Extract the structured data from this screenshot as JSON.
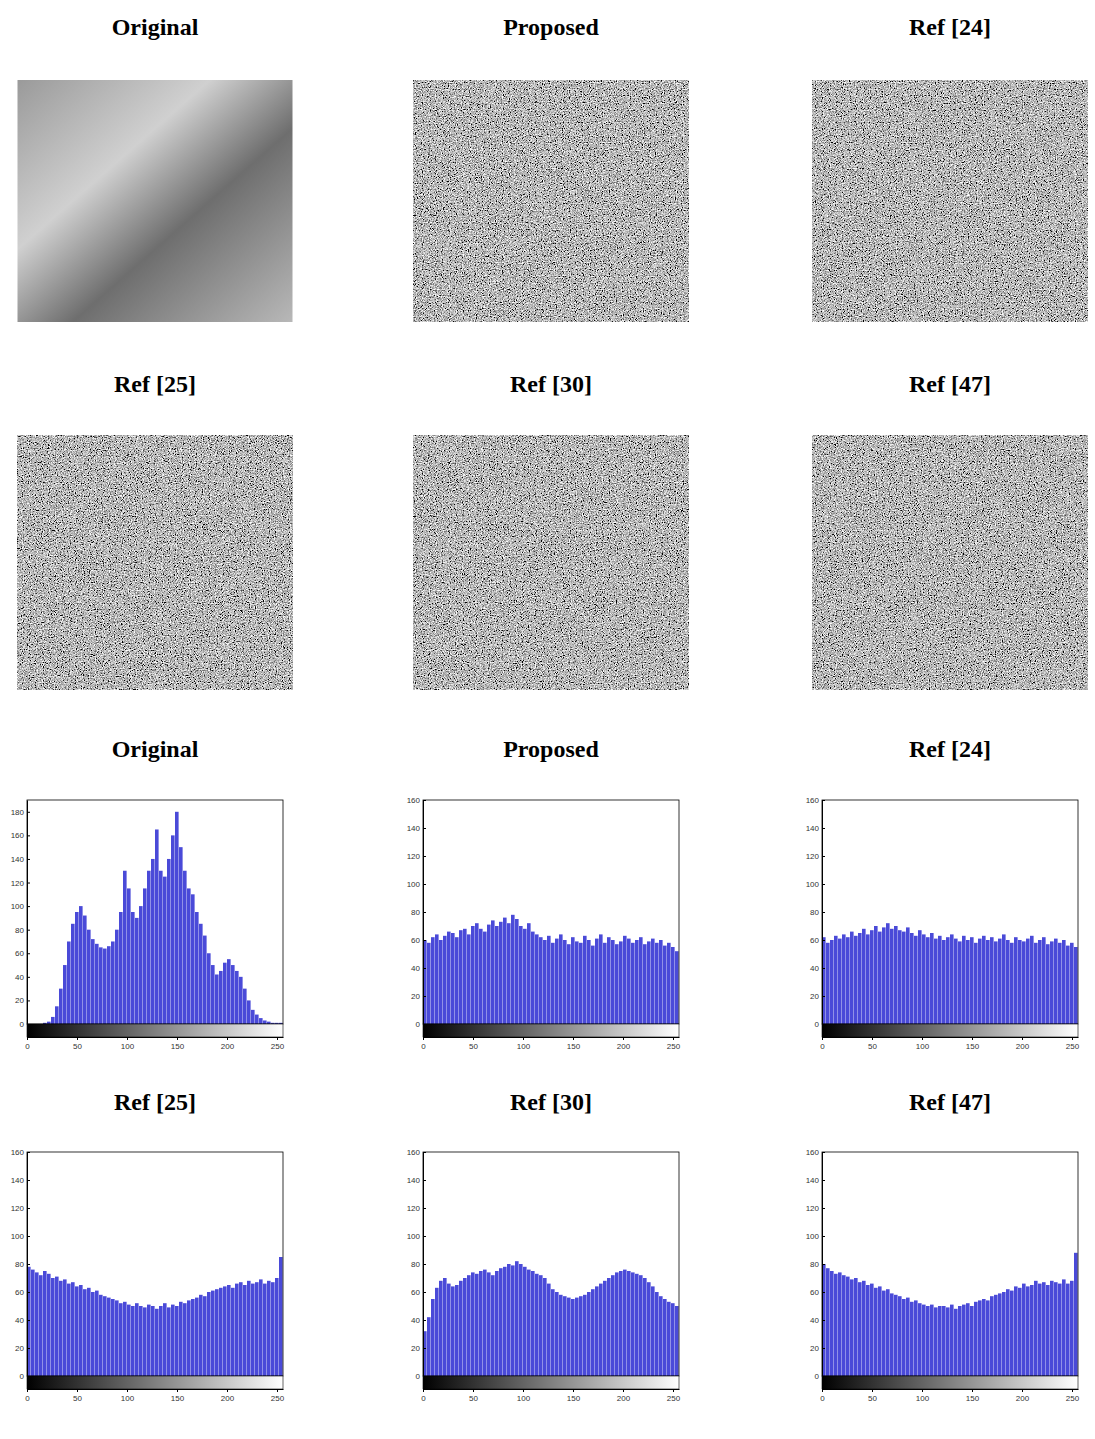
{
  "images": {
    "titles": [
      "Original",
      "Proposed",
      "Ref [24]",
      "Ref [25]",
      "Ref [30]",
      "Ref [47]"
    ]
  },
  "chart_data": [
    {
      "type": "histogram",
      "title": "Original",
      "color": "#4a4ad8",
      "bins": [
        0,
        4,
        8,
        12,
        16,
        20,
        24,
        28,
        32,
        36,
        40,
        44,
        48,
        52,
        56,
        60,
        64,
        68,
        72,
        76,
        80,
        84,
        88,
        92,
        96,
        100,
        104,
        108,
        112,
        116,
        120,
        124,
        128,
        132,
        136,
        140,
        144,
        148,
        152,
        156,
        160,
        164,
        168,
        172,
        176,
        180,
        184,
        188,
        192,
        196,
        200,
        204,
        208,
        212,
        216,
        220,
        224,
        228,
        232,
        236,
        240,
        244,
        248,
        252,
        256
      ],
      "counts": [
        0,
        0,
        0,
        0,
        1,
        2,
        6,
        15,
        30,
        50,
        70,
        85,
        95,
        100,
        92,
        80,
        72,
        68,
        65,
        64,
        66,
        70,
        80,
        95,
        130,
        115,
        95,
        90,
        100,
        115,
        130,
        140,
        165,
        130,
        125,
        140,
        160,
        180,
        150,
        130,
        115,
        110,
        95,
        85,
        75,
        60,
        50,
        42,
        45,
        52,
        55,
        50,
        45,
        40,
        30,
        20,
        12,
        8,
        5,
        3,
        2,
        1,
        1,
        1
      ],
      "xlim": [
        0,
        256
      ],
      "ylim": [
        0,
        190
      ],
      "xticks": [
        0,
        50,
        100,
        150,
        200,
        250
      ],
      "yticks": [
        0,
        20,
        40,
        60,
        80,
        100,
        120,
        140,
        160,
        180
      ],
      "grid": false
    },
    {
      "type": "histogram",
      "title": "Proposed",
      "color": "#4a4ad8",
      "bins": [
        0,
        4,
        8,
        12,
        16,
        20,
        24,
        28,
        32,
        36,
        40,
        44,
        48,
        52,
        56,
        60,
        64,
        68,
        72,
        76,
        80,
        84,
        88,
        92,
        96,
        100,
        104,
        108,
        112,
        116,
        120,
        124,
        128,
        132,
        136,
        140,
        144,
        148,
        152,
        156,
        160,
        164,
        168,
        172,
        176,
        180,
        184,
        188,
        192,
        196,
        200,
        204,
        208,
        212,
        216,
        220,
        224,
        228,
        232,
        236,
        240,
        244,
        248,
        252,
        256
      ],
      "counts": [
        60,
        58,
        62,
        64,
        60,
        63,
        66,
        65,
        62,
        67,
        68,
        64,
        70,
        72,
        68,
        66,
        71,
        74,
        70,
        73,
        76,
        72,
        78,
        75,
        70,
        68,
        72,
        66,
        64,
        62,
        60,
        63,
        58,
        61,
        64,
        60,
        57,
        62,
        59,
        58,
        63,
        60,
        56,
        61,
        64,
        58,
        62,
        60,
        57,
        59,
        63,
        61,
        58,
        60,
        62,
        57,
        59,
        61,
        58,
        60,
        56,
        58,
        55,
        52
      ],
      "xlim": [
        0,
        256
      ],
      "ylim": [
        0,
        160
      ],
      "xticks": [
        0,
        50,
        100,
        150,
        200,
        250
      ],
      "yticks": [
        0,
        20,
        40,
        60,
        80,
        100,
        120,
        140,
        160
      ],
      "grid": false
    },
    {
      "type": "histogram",
      "title": "Ref [24]",
      "color": "#4a4ad8",
      "bins": [
        0,
        4,
        8,
        12,
        16,
        20,
        24,
        28,
        32,
        36,
        40,
        44,
        48,
        52,
        56,
        60,
        64,
        68,
        72,
        76,
        80,
        84,
        88,
        92,
        96,
        100,
        104,
        108,
        112,
        116,
        120,
        124,
        128,
        132,
        136,
        140,
        144,
        148,
        152,
        156,
        160,
        164,
        168,
        172,
        176,
        180,
        184,
        188,
        192,
        196,
        200,
        204,
        208,
        212,
        216,
        220,
        224,
        228,
        232,
        236,
        240,
        244,
        248,
        252,
        256
      ],
      "counts": [
        62,
        58,
        60,
        63,
        61,
        64,
        62,
        66,
        63,
        65,
        68,
        64,
        67,
        70,
        66,
        69,
        72,
        68,
        70,
        67,
        66,
        69,
        65,
        63,
        67,
        64,
        62,
        65,
        61,
        63,
        60,
        62,
        64,
        61,
        59,
        63,
        60,
        62,
        58,
        61,
        63,
        60,
        62,
        59,
        61,
        64,
        60,
        58,
        62,
        60,
        59,
        61,
        63,
        58,
        60,
        62,
        57,
        59,
        61,
        58,
        60,
        56,
        58,
        55
      ],
      "xlim": [
        0,
        256
      ],
      "ylim": [
        0,
        160
      ],
      "xticks": [
        0,
        50,
        100,
        150,
        200,
        250
      ],
      "yticks": [
        0,
        20,
        40,
        60,
        80,
        100,
        120,
        140,
        160
      ],
      "grid": false
    },
    {
      "type": "histogram",
      "title": "Ref [25]",
      "color": "#4a4ad8",
      "bins": [
        0,
        4,
        8,
        12,
        16,
        20,
        24,
        28,
        32,
        36,
        40,
        44,
        48,
        52,
        56,
        60,
        64,
        68,
        72,
        76,
        80,
        84,
        88,
        92,
        96,
        100,
        104,
        108,
        112,
        116,
        120,
        124,
        128,
        132,
        136,
        140,
        144,
        148,
        152,
        156,
        160,
        164,
        168,
        172,
        176,
        180,
        184,
        188,
        192,
        196,
        200,
        204,
        208,
        212,
        216,
        220,
        224,
        228,
        232,
        236,
        240,
        244,
        248,
        252,
        256
      ],
      "counts": [
        78,
        76,
        74,
        72,
        75,
        73,
        70,
        71,
        68,
        69,
        66,
        67,
        64,
        65,
        62,
        63,
        60,
        61,
        58,
        57,
        56,
        55,
        54,
        52,
        53,
        51,
        50,
        52,
        50,
        49,
        51,
        50,
        48,
        50,
        52,
        49,
        51,
        50,
        53,
        52,
        54,
        55,
        56,
        58,
        57,
        60,
        61,
        62,
        63,
        64,
        65,
        63,
        66,
        67,
        65,
        68,
        66,
        67,
        69,
        66,
        68,
        67,
        70,
        85
      ],
      "xlim": [
        0,
        256
      ],
      "ylim": [
        0,
        160
      ],
      "xticks": [
        0,
        50,
        100,
        150,
        200,
        250
      ],
      "yticks": [
        0,
        20,
        40,
        60,
        80,
        100,
        120,
        140,
        160
      ],
      "grid": false
    },
    {
      "type": "histogram",
      "title": "Ref [30]",
      "color": "#4a4ad8",
      "bins": [
        0,
        4,
        8,
        12,
        16,
        20,
        24,
        28,
        32,
        36,
        40,
        44,
        48,
        52,
        56,
        60,
        64,
        68,
        72,
        76,
        80,
        84,
        88,
        92,
        96,
        100,
        104,
        108,
        112,
        116,
        120,
        124,
        128,
        132,
        136,
        140,
        144,
        148,
        152,
        156,
        160,
        164,
        168,
        172,
        176,
        180,
        184,
        188,
        192,
        196,
        200,
        204,
        208,
        212,
        216,
        220,
        224,
        228,
        232,
        236,
        240,
        244,
        248,
        252,
        256
      ],
      "counts": [
        32,
        42,
        55,
        63,
        68,
        70,
        66,
        64,
        65,
        68,
        70,
        72,
        74,
        73,
        75,
        76,
        74,
        72,
        75,
        77,
        78,
        80,
        79,
        82,
        80,
        78,
        76,
        75,
        73,
        72,
        70,
        66,
        62,
        60,
        58,
        57,
        56,
        55,
        56,
        57,
        58,
        60,
        62,
        64,
        66,
        68,
        70,
        72,
        74,
        75,
        76,
        75,
        74,
        73,
        72,
        70,
        67,
        64,
        60,
        57,
        55,
        53,
        52,
        50
      ],
      "xlim": [
        0,
        256
      ],
      "ylim": [
        0,
        160
      ],
      "xticks": [
        0,
        50,
        100,
        150,
        200,
        250
      ],
      "yticks": [
        0,
        20,
        40,
        60,
        80,
        100,
        120,
        140,
        160
      ],
      "grid": false
    },
    {
      "type": "histogram",
      "title": "Ref [47]",
      "color": "#4a4ad8",
      "bins": [
        0,
        4,
        8,
        12,
        16,
        20,
        24,
        28,
        32,
        36,
        40,
        44,
        48,
        52,
        56,
        60,
        64,
        68,
        72,
        76,
        80,
        84,
        88,
        92,
        96,
        100,
        104,
        108,
        112,
        116,
        120,
        124,
        128,
        132,
        136,
        140,
        144,
        148,
        152,
        156,
        160,
        164,
        168,
        172,
        176,
        180,
        184,
        188,
        192,
        196,
        200,
        204,
        208,
        212,
        216,
        220,
        224,
        228,
        232,
        236,
        240,
        244,
        248,
        252,
        256
      ],
      "counts": [
        80,
        77,
        75,
        73,
        74,
        72,
        71,
        69,
        70,
        67,
        68,
        65,
        66,
        63,
        64,
        61,
        62,
        59,
        58,
        57,
        55,
        56,
        53,
        54,
        52,
        51,
        50,
        51,
        49,
        50,
        50,
        49,
        51,
        48,
        50,
        51,
        52,
        50,
        53,
        54,
        55,
        54,
        57,
        58,
        59,
        60,
        62,
        61,
        64,
        63,
        66,
        64,
        65,
        68,
        66,
        67,
        65,
        68,
        67,
        66,
        69,
        66,
        68,
        88
      ],
      "xlim": [
        0,
        256
      ],
      "ylim": [
        0,
        160
      ],
      "xticks": [
        0,
        50,
        100,
        150,
        200,
        250
      ],
      "yticks": [
        0,
        20,
        40,
        60,
        80,
        100,
        120,
        140,
        160
      ],
      "grid": false
    }
  ]
}
